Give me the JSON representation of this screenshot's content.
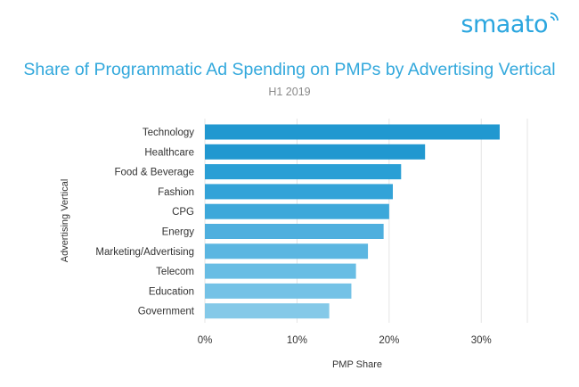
{
  "logo": {
    "text": "smaato",
    "color": "#2ba6df"
  },
  "chart_data": {
    "type": "bar",
    "orientation": "horizontal",
    "title": "Share of Programmatic Ad Spending on PMPs by Advertising Vertical",
    "subtitle": "H1 2019",
    "xlabel": "PMP Share",
    "ylabel": "Advertising Vertical",
    "categories": [
      "Technology",
      "Healthcare",
      "Food & Beverage",
      "Fashion",
      "CPG",
      "Energy",
      "Marketing/Advertising",
      "Telecom",
      "Education",
      "Government"
    ],
    "values": [
      32,
      23.9,
      21.3,
      20.4,
      20.0,
      19.4,
      17.7,
      16.4,
      15.9,
      13.5
    ],
    "xlim": [
      0,
      35
    ],
    "xticks": [
      0,
      10,
      20,
      30
    ],
    "xtick_labels": [
      "0%",
      "10%",
      "20%",
      "30%"
    ],
    "grid": true,
    "bar_colors": [
      "#2198d0",
      "#2198d0",
      "#2a9fd5",
      "#33a3d8",
      "#3da8da",
      "#4eafde",
      "#5bb6e1",
      "#68bde4",
      "#74c2e6",
      "#84c9e8"
    ]
  }
}
